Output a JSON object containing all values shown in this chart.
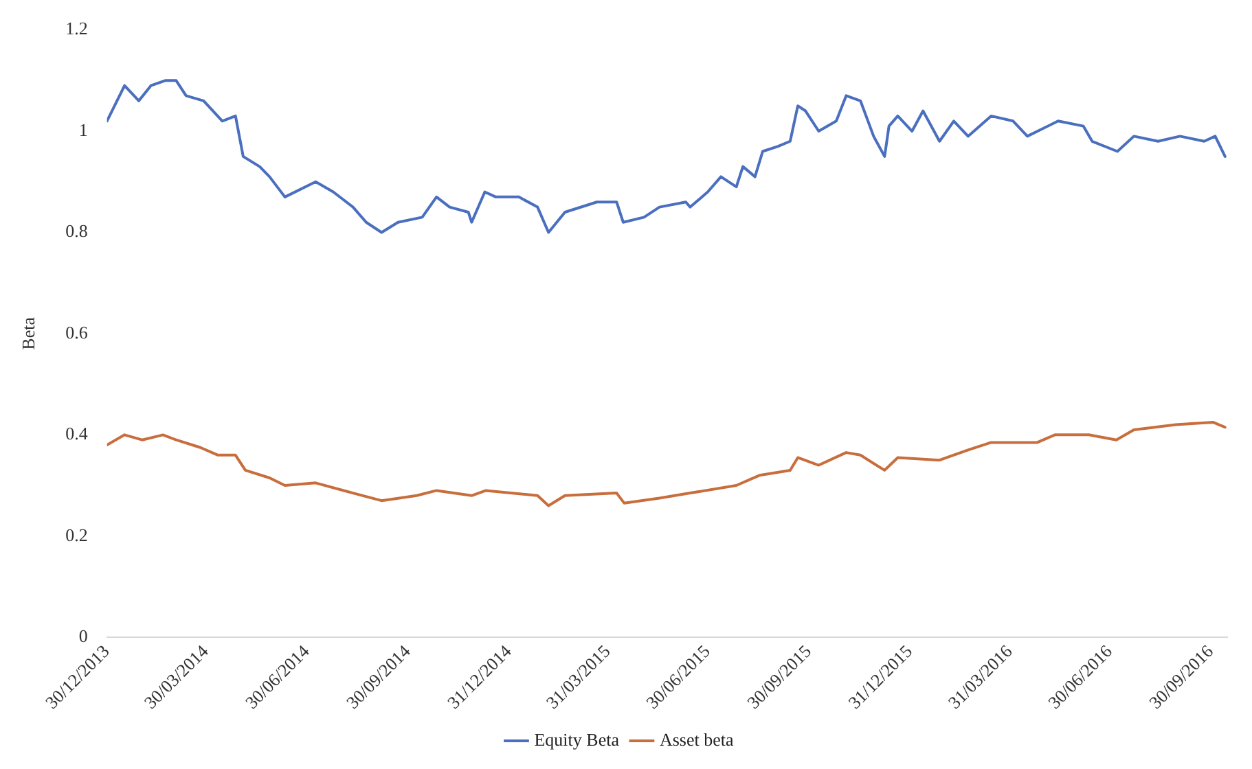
{
  "chart_data": {
    "type": "line",
    "ylabel": "Beta",
    "legend": "bottom",
    "grid": false,
    "marker": "none",
    "line_style": "solid",
    "xlim": [
      "2013-12-30",
      "2016-10-15"
    ],
    "xticks": [
      {
        "value": "2013-12-30",
        "label": "30/12/2013"
      },
      {
        "value": "2014-03-30",
        "label": "30/03/2014"
      },
      {
        "value": "2014-06-30",
        "label": "30/06/2014"
      },
      {
        "value": "2014-09-30",
        "label": "30/09/2014"
      },
      {
        "value": "2014-12-31",
        "label": "31/12/2014"
      },
      {
        "value": "2015-03-31",
        "label": "31/03/2015"
      },
      {
        "value": "2015-06-30",
        "label": "30/06/2015"
      },
      {
        "value": "2015-09-30",
        "label": "30/09/2015"
      },
      {
        "value": "2015-12-31",
        "label": "31/12/2015"
      },
      {
        "value": "2016-03-31",
        "label": "31/03/2016"
      },
      {
        "value": "2016-06-30",
        "label": "30/06/2016"
      },
      {
        "value": "2016-09-30",
        "label": "30/09/2016"
      }
    ],
    "ylim": [
      0,
      1.2
    ],
    "yticks": [
      0,
      0.2,
      0.4,
      0.6,
      0.8,
      1,
      1.2
    ],
    "series": [
      {
        "name": "Equity Beta",
        "color": "#4a6fbf",
        "x": [
          "2013-12-30",
          "2014-01-15",
          "2014-01-28",
          "2014-02-08",
          "2014-02-21",
          "2014-03-03",
          "2014-03-12",
          "2014-03-28",
          "2014-04-14",
          "2014-04-26",
          "2014-05-03",
          "2014-05-18",
          "2014-05-27",
          "2014-06-10",
          "2014-07-08",
          "2014-07-24",
          "2014-08-11",
          "2014-08-23",
          "2014-09-06",
          "2014-09-21",
          "2014-10-13",
          "2014-10-26",
          "2014-11-07",
          "2014-11-24",
          "2014-11-27",
          "2014-12-09",
          "2014-12-19",
          "2015-01-09",
          "2015-01-26",
          "2015-02-05",
          "2015-02-20",
          "2015-03-21",
          "2015-04-08",
          "2015-04-14",
          "2015-05-03",
          "2015-05-17",
          "2015-06-10",
          "2015-06-14",
          "2015-06-30",
          "2015-07-12",
          "2015-07-26",
          "2015-08-01",
          "2015-08-12",
          "2015-08-19",
          "2015-09-02",
          "2015-09-13",
          "2015-09-20",
          "2015-09-27",
          "2015-10-09",
          "2015-10-25",
          "2015-11-03",
          "2015-11-16",
          "2015-11-28",
          "2015-12-08",
          "2015-12-12",
          "2015-12-20",
          "2016-01-02",
          "2016-01-12",
          "2016-01-27",
          "2016-02-09",
          "2016-02-22",
          "2016-03-14",
          "2016-04-03",
          "2016-04-16",
          "2016-05-14",
          "2016-06-06",
          "2016-06-14",
          "2016-07-07",
          "2016-07-22",
          "2016-08-13",
          "2016-09-02",
          "2016-09-24",
          "2016-10-04",
          "2016-10-13"
        ],
        "values": [
          1.02,
          1.09,
          1.06,
          1.09,
          1.1,
          1.1,
          1.07,
          1.06,
          1.02,
          1.03,
          0.95,
          0.93,
          0.91,
          0.87,
          0.9,
          0.88,
          0.85,
          0.82,
          0.8,
          0.82,
          0.83,
          0.87,
          0.85,
          0.84,
          0.82,
          0.88,
          0.87,
          0.87,
          0.85,
          0.8,
          0.84,
          0.86,
          0.86,
          0.82,
          0.83,
          0.85,
          0.86,
          0.85,
          0.88,
          0.91,
          0.89,
          0.93,
          0.91,
          0.96,
          0.97,
          0.98,
          1.05,
          1.04,
          1,
          1.02,
          1.07,
          1.06,
          0.99,
          0.95,
          1.01,
          1.03,
          1,
          1.04,
          0.98,
          1.02,
          0.99,
          1.03,
          1.02,
          0.99,
          1.02,
          1.01,
          0.98,
          0.96,
          0.99,
          0.98,
          0.99,
          0.98,
          0.99,
          0.95
        ]
      },
      {
        "name": "Asset beta",
        "color": "#c86d3c",
        "x": [
          "2013-12-30",
          "2014-01-15",
          "2014-01-31",
          "2014-02-19",
          "2014-03-03",
          "2014-03-25",
          "2014-04-10",
          "2014-04-26",
          "2014-05-05",
          "2014-05-27",
          "2014-06-10",
          "2014-07-08",
          "2014-08-11",
          "2014-09-06",
          "2014-10-08",
          "2014-10-26",
          "2014-11-27",
          "2014-12-10",
          "2015-01-26",
          "2015-02-05",
          "2015-02-20",
          "2015-04-08",
          "2015-04-15",
          "2015-05-17",
          "2015-06-14",
          "2015-07-26",
          "2015-08-16",
          "2015-09-13",
          "2015-09-20",
          "2015-10-09",
          "2015-11-03",
          "2015-11-16",
          "2015-12-08",
          "2015-12-20",
          "2016-01-27",
          "2016-02-22",
          "2016-03-14",
          "2016-04-25",
          "2016-05-11",
          "2016-06-11",
          "2016-07-06",
          "2016-07-22",
          "2016-08-29",
          "2016-10-02",
          "2016-10-13"
        ],
        "values": [
          0.38,
          0.4,
          0.39,
          0.4,
          0.39,
          0.375,
          0.36,
          0.36,
          0.33,
          0.315,
          0.3,
          0.305,
          0.285,
          0.27,
          0.28,
          0.29,
          0.28,
          0.29,
          0.28,
          0.26,
          0.28,
          0.285,
          0.265,
          0.275,
          0.285,
          0.3,
          0.32,
          0.33,
          0.355,
          0.34,
          0.365,
          0.36,
          0.33,
          0.355,
          0.35,
          0.37,
          0.385,
          0.385,
          0.4,
          0.4,
          0.39,
          0.41,
          0.42,
          0.425,
          0.415
        ]
      }
    ]
  }
}
